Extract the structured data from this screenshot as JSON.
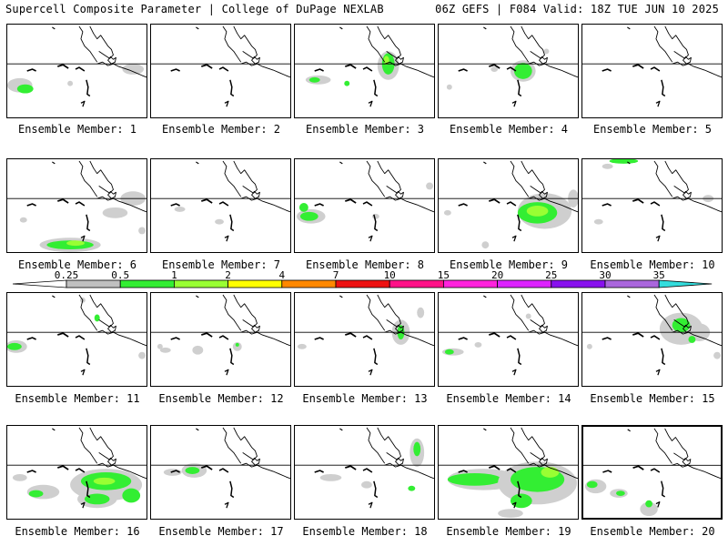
{
  "header": {
    "left": "Supercell Composite Parameter | College of DuPage NEXLAB",
    "right": "06Z GEFS | F084 Valid: 18Z TUE JUN 10 2025"
  },
  "members": [
    {
      "label": "Ensemble Member: 1"
    },
    {
      "label": "Ensemble Member: 2"
    },
    {
      "label": "Ensemble Member: 3"
    },
    {
      "label": "Ensemble Member: 4"
    },
    {
      "label": "Ensemble Member: 5"
    },
    {
      "label": "Ensemble Member: 6"
    },
    {
      "label": "Ensemble Member: 7"
    },
    {
      "label": "Ensemble Member: 8"
    },
    {
      "label": "Ensemble Member: 9"
    },
    {
      "label": "Ensemble Member: 10"
    },
    {
      "label": "Ensemble Member: 11"
    },
    {
      "label": "Ensemble Member: 12"
    },
    {
      "label": "Ensemble Member: 13"
    },
    {
      "label": "Ensemble Member: 14"
    },
    {
      "label": "Ensemble Member: 15"
    },
    {
      "label": "Ensemble Member: 16"
    },
    {
      "label": "Ensemble Member: 17"
    },
    {
      "label": "Ensemble Member: 18"
    },
    {
      "label": "Ensemble Member: 19"
    },
    {
      "label": "Ensemble Member: 20"
    }
  ],
  "colorbar": {
    "ticks": [
      "0.25",
      "0.5",
      "1",
      "2",
      "4",
      "7",
      "10",
      "15",
      "20",
      "25",
      "30",
      "35"
    ],
    "colors": [
      "#ffffff",
      "#c0c0c0",
      "#33ee33",
      "#99ff33",
      "#ffff00",
      "#ff8800",
      "#ee1111",
      "#ff1188",
      "#ff22dd",
      "#dd22ff",
      "#8811ee",
      "#aa66dd",
      "#33dddd"
    ]
  }
}
